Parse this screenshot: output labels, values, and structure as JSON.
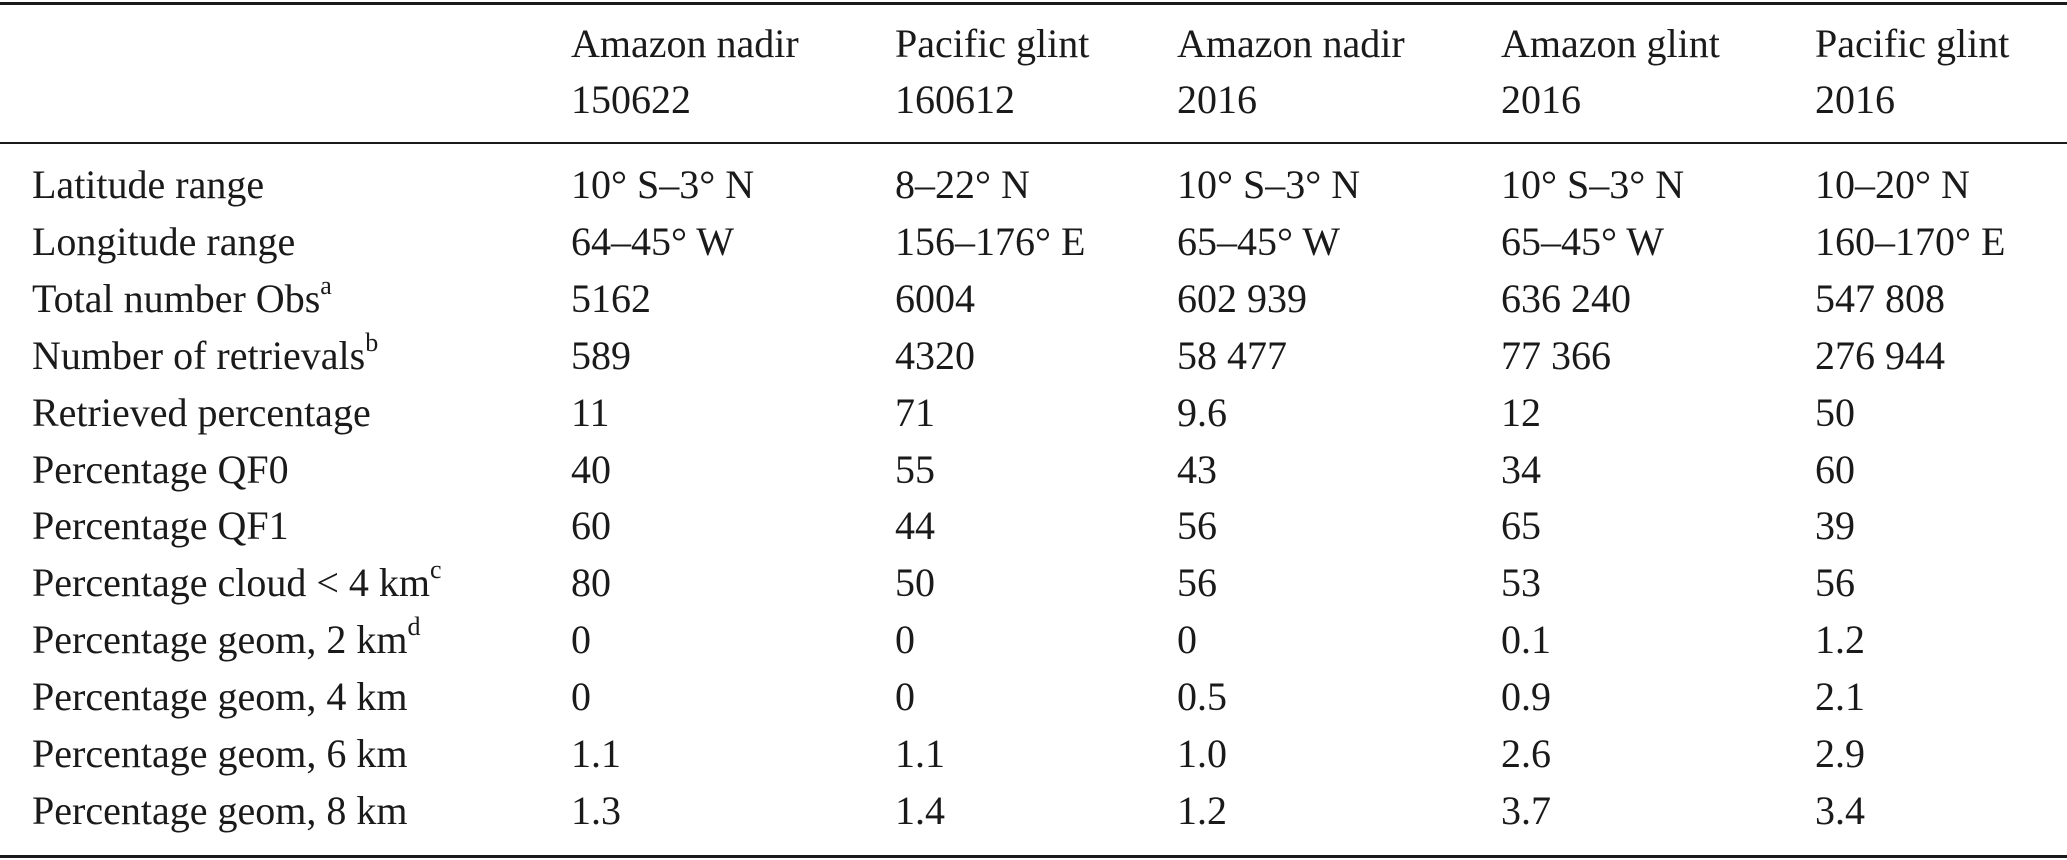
{
  "table": {
    "header": [
      [
        "Amazon nadir",
        "150622"
      ],
      [
        "Pacific glint",
        "160612"
      ],
      [
        "Amazon nadir",
        "2016"
      ],
      [
        "Amazon glint",
        "2016"
      ],
      [
        "Pacific glint",
        "2016"
      ]
    ],
    "rows": [
      {
        "label": "Latitude range",
        "cells": [
          "10° S–3° N",
          "8–22° N",
          "10° S–3° N",
          "10° S–3° N",
          "10–20° N"
        ]
      },
      {
        "label": "Longitude range",
        "cells": [
          "64–45° W",
          "156–176° E",
          "65–45° W",
          "65–45° W",
          "160–170° E"
        ]
      },
      {
        "label": "Total number Obs",
        "note": "a",
        "cells": [
          "5162",
          "6004",
          "602 939",
          "636 240",
          "547 808"
        ]
      },
      {
        "label": "Number of retrievals",
        "note": "b",
        "cells": [
          "589",
          "4320",
          "58 477",
          "77 366",
          "276 944"
        ]
      },
      {
        "label": "Retrieved percentage",
        "cells": [
          "11",
          "71",
          "9.6",
          "12",
          "50"
        ]
      },
      {
        "label": "Percentage QF0",
        "cells": [
          "40",
          "55",
          "43",
          "34",
          "60"
        ]
      },
      {
        "label": "Percentage QF1",
        "cells": [
          "60",
          "44",
          "56",
          "65",
          "39"
        ]
      },
      {
        "label": "Percentage cloud < 4 km",
        "note": "c",
        "cells": [
          "80",
          "50",
          "56",
          "53",
          "56"
        ]
      },
      {
        "label": "Percentage geom, 2 km",
        "note": "d",
        "cells": [
          "0",
          "0",
          "0",
          "0.1",
          "1.2"
        ]
      },
      {
        "label": "Percentage geom, 4 km",
        "cells": [
          "0",
          "0",
          "0.5",
          "0.9",
          "2.1"
        ]
      },
      {
        "label": "Percentage geom, 6 km",
        "cells": [
          "1.1",
          "1.1",
          "1.0",
          "2.6",
          "2.9"
        ]
      },
      {
        "label": "Percentage geom, 8 km",
        "cells": [
          "1.3",
          "1.4",
          "1.2",
          "3.7",
          "3.4"
        ]
      }
    ]
  }
}
